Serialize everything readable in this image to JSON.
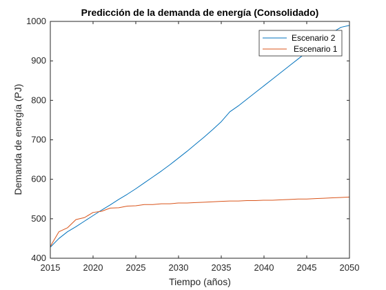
{
  "chart_data": {
    "type": "line",
    "title": "Predicción de la demanda de energía (Consolidado)",
    "xlabel": "Tiempo (años)",
    "ylabel": "Demanda de energía (PJ)",
    "xlim": [
      2015,
      2050
    ],
    "ylim": [
      400,
      1000
    ],
    "xticks": [
      "2015",
      "2020",
      "2025",
      "2030",
      "2035",
      "2040",
      "2045",
      "2050"
    ],
    "yticks": [
      "400",
      "500",
      "600",
      "700",
      "800",
      "900",
      "1000"
    ],
    "grid": false,
    "legend_position": "top-right",
    "series": [
      {
        "name": "Escenario 2",
        "color": "#0072BD",
        "x": [
          2015,
          2016,
          2017,
          2018,
          2019,
          2020,
          2021,
          2022,
          2023,
          2024,
          2025,
          2026,
          2027,
          2028,
          2029,
          2030,
          2031,
          2032,
          2033,
          2034,
          2035,
          2036,
          2037,
          2038,
          2039,
          2040,
          2041,
          2042,
          2043,
          2044,
          2045,
          2046,
          2047,
          2048,
          2049,
          2050
        ],
        "values": [
          428,
          450,
          467,
          480,
          494,
          508,
          522,
          535,
          549,
          562,
          576,
          591,
          606,
          621,
          637,
          654,
          671,
          689,
          707,
          726,
          746,
          771,
          786,
          803,
          820,
          837,
          854,
          871,
          888,
          905,
          922,
          939,
          956,
          972,
          985,
          990
        ]
      },
      {
        "name": "Escenario 1",
        "color": "#D95319",
        "x": [
          2015,
          2016,
          2017,
          2018,
          2019,
          2020,
          2021,
          2022,
          2023,
          2024,
          2025,
          2026,
          2027,
          2028,
          2029,
          2030,
          2031,
          2032,
          2033,
          2034,
          2035,
          2036,
          2037,
          2038,
          2039,
          2040,
          2041,
          2042,
          2043,
          2044,
          2045,
          2046,
          2047,
          2048,
          2049,
          2050
        ],
        "values": [
          430,
          467,
          477,
          498,
          503,
          516,
          519,
          527,
          528,
          532,
          533,
          536,
          536,
          538,
          538,
          540,
          540,
          541,
          542,
          543,
          544,
          545,
          545,
          546,
          546,
          547,
          547,
          548,
          549,
          550,
          550,
          551,
          552,
          553,
          554,
          555
        ]
      }
    ]
  },
  "colors": {
    "axes": "#262626",
    "background": "#ffffff"
  }
}
